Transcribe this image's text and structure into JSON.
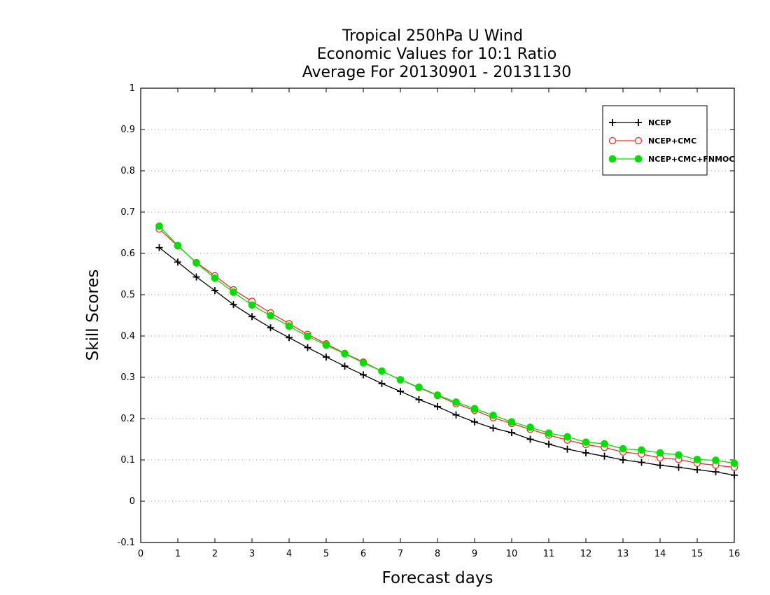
{
  "chart_data": {
    "type": "line",
    "title": [
      "Tropical 250hPa U Wind",
      "Economic Values for 10:1 Ratio",
      "Average For 20130901 - 20131130"
    ],
    "xlabel": "Forecast days",
    "ylabel": "Skill Scores",
    "xlim": [
      0,
      16
    ],
    "ylim": [
      -0.1,
      1
    ],
    "xticks": [
      0,
      1,
      2,
      3,
      4,
      5,
      6,
      7,
      8,
      9,
      10,
      11,
      12,
      13,
      14,
      15,
      16
    ],
    "xtick_labels": [
      "0",
      "1",
      "2",
      "3",
      "4",
      "5",
      "6",
      "7",
      "8",
      "9",
      "10",
      "11",
      "12",
      "13",
      "14",
      "15",
      "16"
    ],
    "yticks": [
      -0.1,
      0,
      0.1,
      0.2,
      0.3,
      0.4,
      0.5,
      0.6,
      0.7,
      0.8,
      0.9,
      1
    ],
    "ytick_labels": [
      "-0.1",
      "0",
      "0.1",
      "0.2",
      "0.3",
      "0.4",
      "0.5",
      "0.6",
      "0.7",
      "0.8",
      "0.9",
      "1"
    ],
    "grid": true,
    "legend_position": "top-right",
    "x": [
      0.5,
      1,
      1.5,
      2,
      2.5,
      3,
      3.5,
      4,
      4.5,
      5,
      5.5,
      6,
      6.5,
      7,
      7.5,
      8,
      8.5,
      9,
      9.5,
      10,
      10.5,
      11,
      11.5,
      12,
      12.5,
      13,
      13.5,
      14,
      14.5,
      15,
      15.5,
      16
    ],
    "series": [
      {
        "name": "NCEP",
        "color": "#000000",
        "marker": "plus",
        "values": [
          0.614,
          0.579,
          0.543,
          0.51,
          0.476,
          0.447,
          0.42,
          0.396,
          0.372,
          0.349,
          0.327,
          0.306,
          0.285,
          0.266,
          0.246,
          0.229,
          0.209,
          0.192,
          0.177,
          0.166,
          0.15,
          0.138,
          0.126,
          0.117,
          0.109,
          0.1,
          0.094,
          0.087,
          0.082,
          0.076,
          0.071,
          0.063
        ]
      },
      {
        "name": "NCEP+CMC",
        "color": "#e8302a",
        "marker": "open-circle",
        "values": [
          0.659,
          0.618,
          0.578,
          0.546,
          0.512,
          0.484,
          0.456,
          0.43,
          0.404,
          0.381,
          0.358,
          0.337,
          0.315,
          0.294,
          0.275,
          0.256,
          0.236,
          0.22,
          0.202,
          0.188,
          0.174,
          0.16,
          0.148,
          0.137,
          0.13,
          0.119,
          0.114,
          0.105,
          0.101,
          0.092,
          0.087,
          0.082
        ]
      },
      {
        "name": "NCEP+CMC+FNMOC",
        "color": "#00dd00",
        "marker": "filled-circle",
        "values": [
          0.666,
          0.619,
          0.577,
          0.54,
          0.506,
          0.475,
          0.449,
          0.424,
          0.399,
          0.378,
          0.357,
          0.335,
          0.315,
          0.294,
          0.276,
          0.257,
          0.24,
          0.224,
          0.208,
          0.192,
          0.179,
          0.165,
          0.156,
          0.143,
          0.139,
          0.127,
          0.124,
          0.117,
          0.112,
          0.101,
          0.099,
          0.092
        ]
      }
    ]
  }
}
